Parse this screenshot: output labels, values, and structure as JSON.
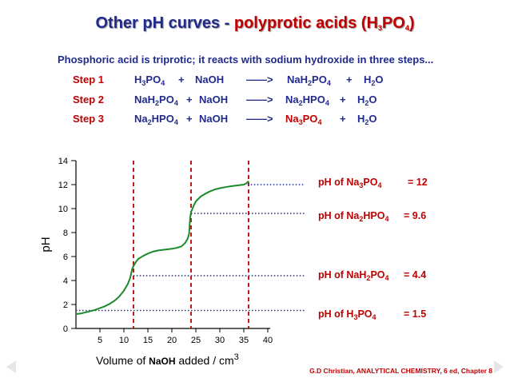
{
  "title": {
    "part1": "Other pH curves - ",
    "part2_a": "polyprotic acids (H",
    "sub1": "3",
    "part2_b": "PO",
    "sub2": "4",
    "part2_c": ")"
  },
  "intro": "Phosphoric acid is triprotic; it reacts with sodium hydroxide in three steps...",
  "steps": [
    {
      "name": "Step 1",
      "reactant": [
        "H",
        "3",
        "PO",
        "4"
      ],
      "plus1": "+",
      "base": "NaOH",
      "arrow": "——>",
      "product": [
        "NaH",
        "2",
        "PO",
        "4"
      ],
      "plus2": "+",
      "water": [
        "H",
        "2",
        "O"
      ]
    },
    {
      "name": "Step 2",
      "reactant": [
        "NaH",
        "2",
        "PO",
        "4"
      ],
      "plus1": "+",
      "base": "NaOH",
      "arrow": "——>",
      "product": [
        "Na",
        "2",
        "HPO",
        "4"
      ],
      "plus2": "+",
      "water": [
        "H",
        "2",
        "O"
      ]
    },
    {
      "name": "Step 3",
      "reactant": [
        "Na",
        "2",
        "HPO",
        "4"
      ],
      "plus1": "+",
      "base": "NaOH",
      "arrow": "——>",
      "product": [
        "Na",
        "3",
        "PO",
        "4"
      ],
      "plus2": "+",
      "water": [
        "H",
        "2",
        "O"
      ]
    }
  ],
  "annotations": [
    {
      "pre": "pH of Na",
      "s1": "3",
      "mid": "PO",
      "s2": "4",
      "eq": "=",
      "val": "12"
    },
    {
      "pre": "pH of Na",
      "s1": "2",
      "mid": "HPO",
      "s2": "4",
      "eq": "=",
      "val": "9.6"
    },
    {
      "pre": "pH of NaH",
      "s1": "2",
      "mid": "PO",
      "s2": "4",
      "eq": "=",
      "val": "4.4"
    },
    {
      "pre": "pH of H",
      "s1": "3",
      "mid": "PO",
      "s2": "4",
      "eq": "=",
      "val": "1.5"
    }
  ],
  "credit": "G.D Christian, ANALYTICAL CHEMISTRY, 6 ed, Chapter 8",
  "colors": {
    "title_blue": "#1f2a8c",
    "accent_red": "#c00000",
    "curve_green": "#1a8a2a",
    "dotted_blue": "#1f2a8c",
    "nav_gray": "#e6e6e6"
  },
  "chart_data": {
    "type": "line",
    "xlabel_pre": "Volume of ",
    "xlabel_bold": "NaOH",
    "xlabel_post": " added / cm",
    "xlabel_sup": "3",
    "ylabel": "pH",
    "xlim": [
      0,
      45
    ],
    "ylim": [
      0,
      14
    ],
    "x_ticks": [
      5,
      10,
      15,
      20,
      25,
      30,
      35,
      40
    ],
    "y_ticks": [
      0,
      2,
      4,
      6,
      8,
      10,
      12,
      14
    ],
    "grid": false,
    "series": [
      {
        "x": [
          0,
          1,
          2,
          3,
          4,
          5,
          6,
          7,
          8,
          9,
          10,
          10.8,
          11.3,
          11.6,
          11.8,
          12,
          12.5,
          13,
          14,
          15,
          16,
          17,
          18,
          19,
          20,
          21,
          22,
          22.8,
          23.3,
          23.6,
          23.8,
          24,
          24.5,
          25,
          26,
          27,
          28,
          29,
          30,
          31,
          32,
          33,
          34,
          35,
          35.5,
          35.8,
          36
        ],
        "y": [
          1.2,
          1.25,
          1.35,
          1.45,
          1.55,
          1.7,
          1.85,
          2.05,
          2.3,
          2.65,
          3.15,
          3.7,
          4.2,
          4.75,
          5.05,
          5.2,
          5.55,
          5.8,
          6.05,
          6.25,
          6.4,
          6.5,
          6.55,
          6.6,
          6.65,
          6.72,
          6.85,
          7.15,
          7.5,
          7.9,
          9.2,
          9.7,
          10.2,
          10.6,
          11.0,
          11.25,
          11.45,
          11.6,
          11.7,
          11.78,
          11.85,
          11.9,
          11.95,
          12.0,
          12.1,
          12.2,
          12.3
        ]
      }
    ],
    "equivalence_volumes": [
      12,
      24,
      36
    ],
    "reference_ph": [
      12,
      9.6,
      4.4,
      1.5
    ]
  }
}
